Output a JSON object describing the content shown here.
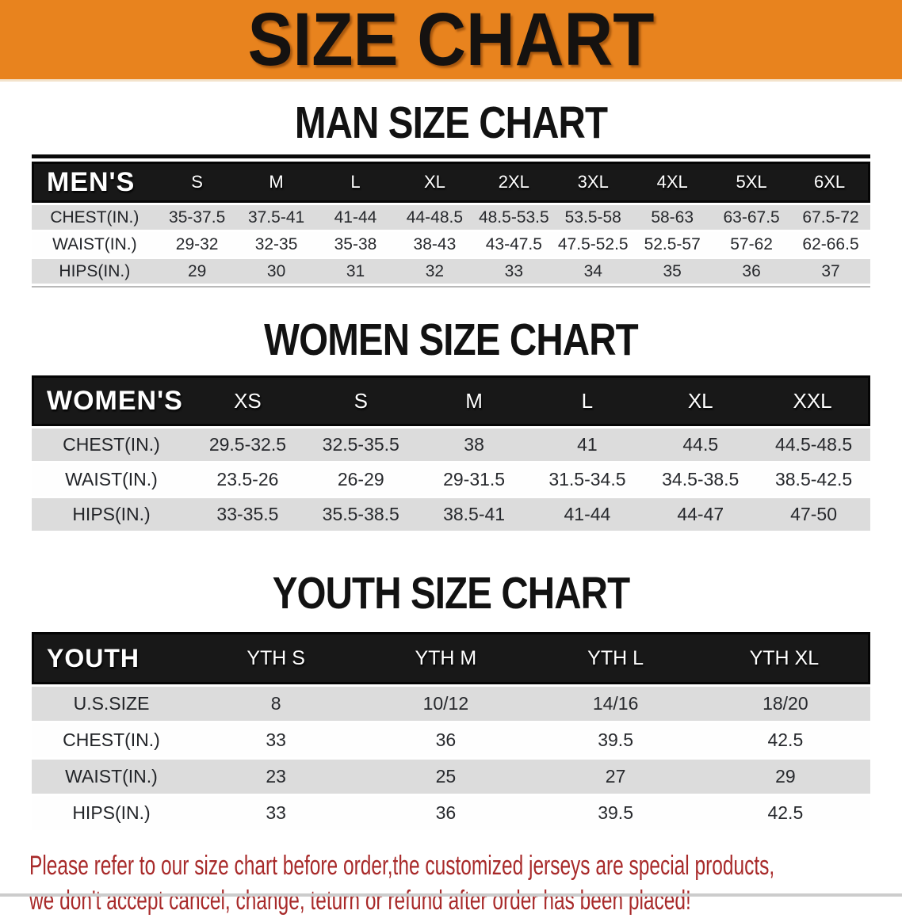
{
  "banner": {
    "title": "SIZE CHART",
    "bg_color": "#E8831E"
  },
  "sections": [
    {
      "id": "men",
      "heading": "MAN SIZE CHART",
      "corner": "MEN'S",
      "columns": [
        "S",
        "M",
        "L",
        "XL",
        "2XL",
        "3XL",
        "4XL",
        "5XL",
        "6XL"
      ],
      "rows": [
        {
          "label": "CHEST(IN.)",
          "values": [
            "35-37.5",
            "37.5-41",
            "41-44",
            "44-48.5",
            "48.5-53.5",
            "53.5-58",
            "58-63",
            "63-67.5",
            "67.5-72"
          ]
        },
        {
          "label": "WAIST(IN.)",
          "values": [
            "29-32",
            "32-35",
            "35-38",
            "38-43",
            "43-47.5",
            "47.5-52.5",
            "52.5-57",
            "57-62",
            "62-66.5"
          ]
        },
        {
          "label": "HIPS(IN.)",
          "values": [
            "29",
            "30",
            "31",
            "32",
            "33",
            "34",
            "35",
            "36",
            "37"
          ]
        }
      ]
    },
    {
      "id": "women",
      "heading": "WOMEN SIZE CHART",
      "corner": "WOMEN'S",
      "columns": [
        "XS",
        "S",
        "M",
        "L",
        "XL",
        "XXL"
      ],
      "rows": [
        {
          "label": "CHEST(IN.)",
          "values": [
            "29.5-32.5",
            "32.5-35.5",
            "38",
            "41",
            "44.5",
            "44.5-48.5"
          ]
        },
        {
          "label": "WAIST(IN.)",
          "values": [
            "23.5-26",
            "26-29",
            "29-31.5",
            "31.5-34.5",
            "34.5-38.5",
            "38.5-42.5"
          ]
        },
        {
          "label": "HIPS(IN.)",
          "values": [
            "33-35.5",
            "35.5-38.5",
            "38.5-41",
            "41-44",
            "44-47",
            "47-50"
          ]
        }
      ]
    },
    {
      "id": "youth",
      "heading": "YOUTH SIZE CHART",
      "corner": "YOUTH",
      "columns": [
        "YTH S",
        "YTH M",
        "YTH L",
        "YTH XL"
      ],
      "rows": [
        {
          "label": "U.S.SIZE",
          "values": [
            "8",
            "10/12",
            "14/16",
            "18/20"
          ]
        },
        {
          "label": "CHEST(IN.)",
          "values": [
            "33",
            "36",
            "39.5",
            "42.5"
          ]
        },
        {
          "label": "WAIST(IN.)",
          "values": [
            "23",
            "25",
            "27",
            "29"
          ]
        },
        {
          "label": "HIPS(IN.)",
          "values": [
            "33",
            "36",
            "39.5",
            "42.5"
          ]
        }
      ]
    }
  ],
  "disclaimer": {
    "line1": "Please refer to our size chart before order,the customized jerseys are special products,",
    "line2": "we don't accept cancel, change, teturn or refund after order has been placed!",
    "color": "#A82A2A"
  },
  "colors": {
    "banner_orange": "#E8831E",
    "header_black": "#181818",
    "stripe_gray": "#DCDCDC",
    "stripe_white": "#FEFEFE"
  }
}
